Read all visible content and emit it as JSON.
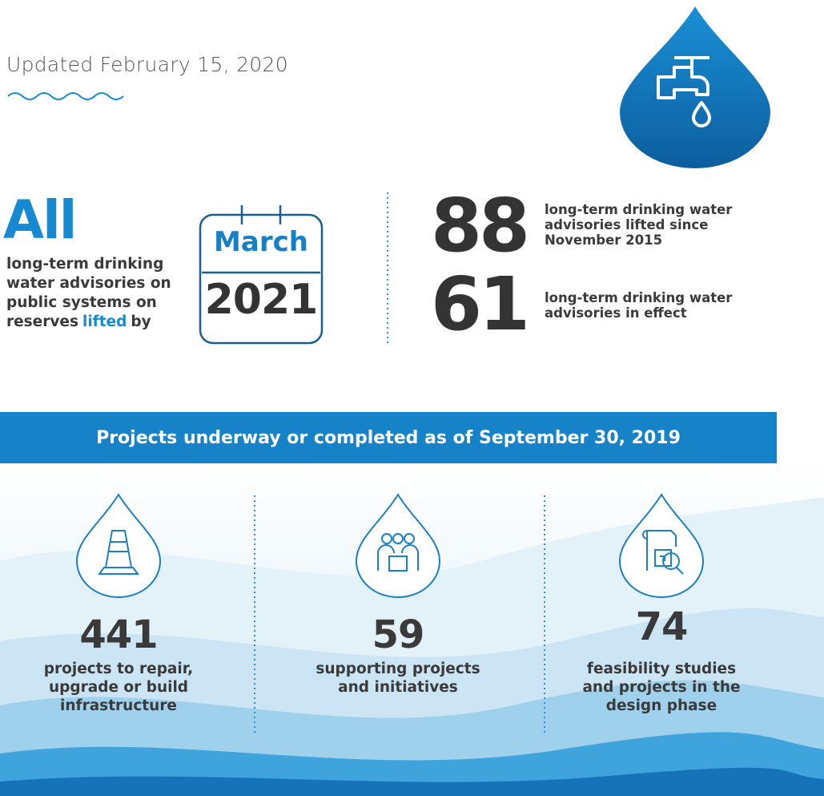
{
  "header": {
    "updated": "Updated February 15, 2020"
  },
  "commitment": {
    "headline": "All",
    "text": [
      "long-term drinking water advisories on public systems on reserves",
      "lifted",
      "by"
    ],
    "month": "March",
    "year": "2021"
  },
  "stats": [
    {
      "number": 88,
      "text": "long-term drinking water advisories lifted since November 2015"
    },
    {
      "number": 61,
      "text": "long-term drinking water advisories in effect"
    }
  ],
  "banner": "Projects underway or completed as of September 30, 2019",
  "cards": [
    {
      "number": 441,
      "text": "projects to repair, upgrade or build infrastructure"
    },
    {
      "number": 59,
      "text": "supporting projects and initiatives"
    },
    {
      "number": 74,
      "text": "feasibility studies and projects in the design phase"
    }
  ]
}
